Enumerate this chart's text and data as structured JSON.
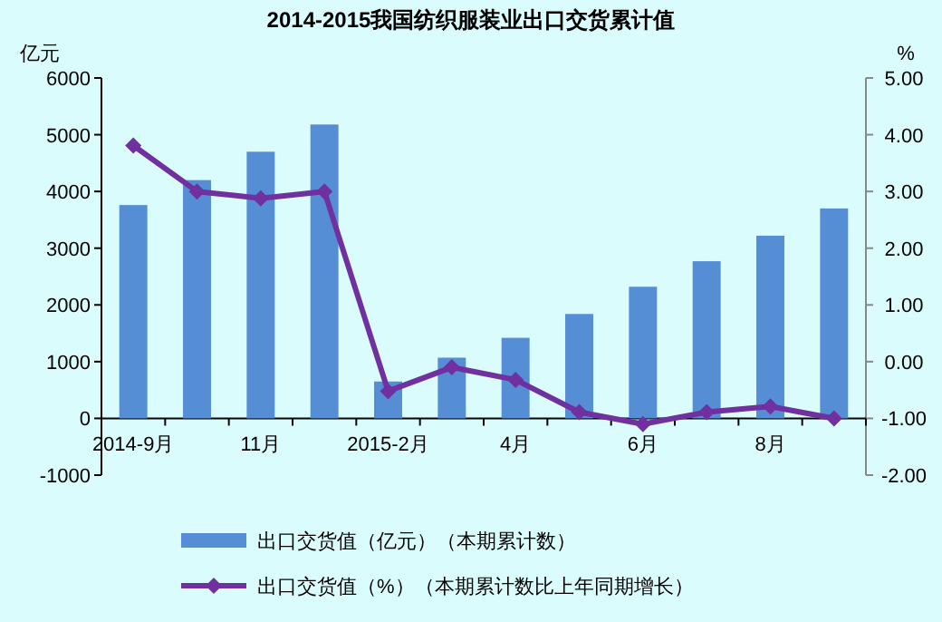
{
  "chart_data": {
    "type": "bar",
    "title": "2014-2015我国纺织服装业出口交货累计值",
    "ylabel": "亿元",
    "y2label": "%",
    "categories": [
      "2014-9月",
      null,
      "11月",
      null,
      "2015-2月",
      null,
      "4月",
      null,
      "6月",
      null,
      "8月",
      null
    ],
    "series": [
      {
        "name": "出口交货值（亿元）（本期累计数）",
        "color": "#558ed5",
        "values": [
          3760,
          4200,
          4700,
          5180,
          650,
          1070,
          1420,
          1840,
          2320,
          2770,
          3220,
          3700
        ]
      },
      {
        "name": "出口交货值（%）（本期累计数比上年同期增长）",
        "type": "line",
        "axis": "y2",
        "color": "#7030a0",
        "marker": "diamond",
        "values": [
          3.81,
          3.0,
          2.88,
          3.0,
          -0.52,
          -0.1,
          -0.32,
          -0.89,
          -1.1,
          -0.89,
          -0.79,
          -1.0
        ]
      }
    ],
    "ylim": [
      -1000,
      6000
    ],
    "yticks": [
      -1000,
      0,
      1000,
      2000,
      3000,
      4000,
      5000,
      6000
    ],
    "y2lim": [
      -2,
      5
    ],
    "y2ticks": [
      {
        "value": -2,
        "label": "-2.00"
      },
      {
        "value": -1,
        "label": "-1.00"
      },
      {
        "value": 0,
        "label": "0.00"
      },
      {
        "value": 1,
        "label": "1.00"
      },
      {
        "value": 2,
        "label": "2.00"
      },
      {
        "value": 3,
        "label": "3.00"
      },
      {
        "value": 4,
        "label": "4.00"
      },
      {
        "value": 5,
        "label": "5.00"
      }
    ],
    "legend": "bottom"
  }
}
